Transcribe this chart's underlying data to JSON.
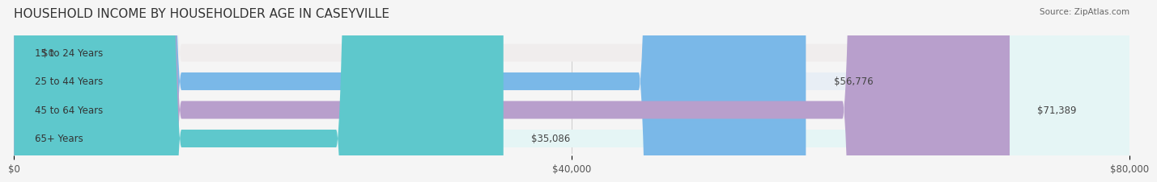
{
  "title": "HOUSEHOLD INCOME BY HOUSEHOLDER AGE IN CASEYVILLE",
  "source": "Source: ZipAtlas.com",
  "categories": [
    "15 to 24 Years",
    "25 to 44 Years",
    "45 to 64 Years",
    "65+ Years"
  ],
  "values": [
    0,
    56776,
    71389,
    35086
  ],
  "value_labels": [
    "$0",
    "$56,776",
    "$71,389",
    "$35,086"
  ],
  "bar_colors": [
    "#f4a0a0",
    "#7ab8e8",
    "#b89fcc",
    "#5ec8cc"
  ],
  "bg_colors": [
    "#f0eded",
    "#e8eef5",
    "#ede8f0",
    "#e5f5f5"
  ],
  "xmax": 80000,
  "xticks": [
    0,
    40000,
    80000
  ],
  "xtick_labels": [
    "$0",
    "$40,000",
    "$80,000"
  ],
  "title_fontsize": 11,
  "label_fontsize": 8.5,
  "value_fontsize": 8.5,
  "bar_height": 0.62,
  "background_color": "#f5f5f5"
}
